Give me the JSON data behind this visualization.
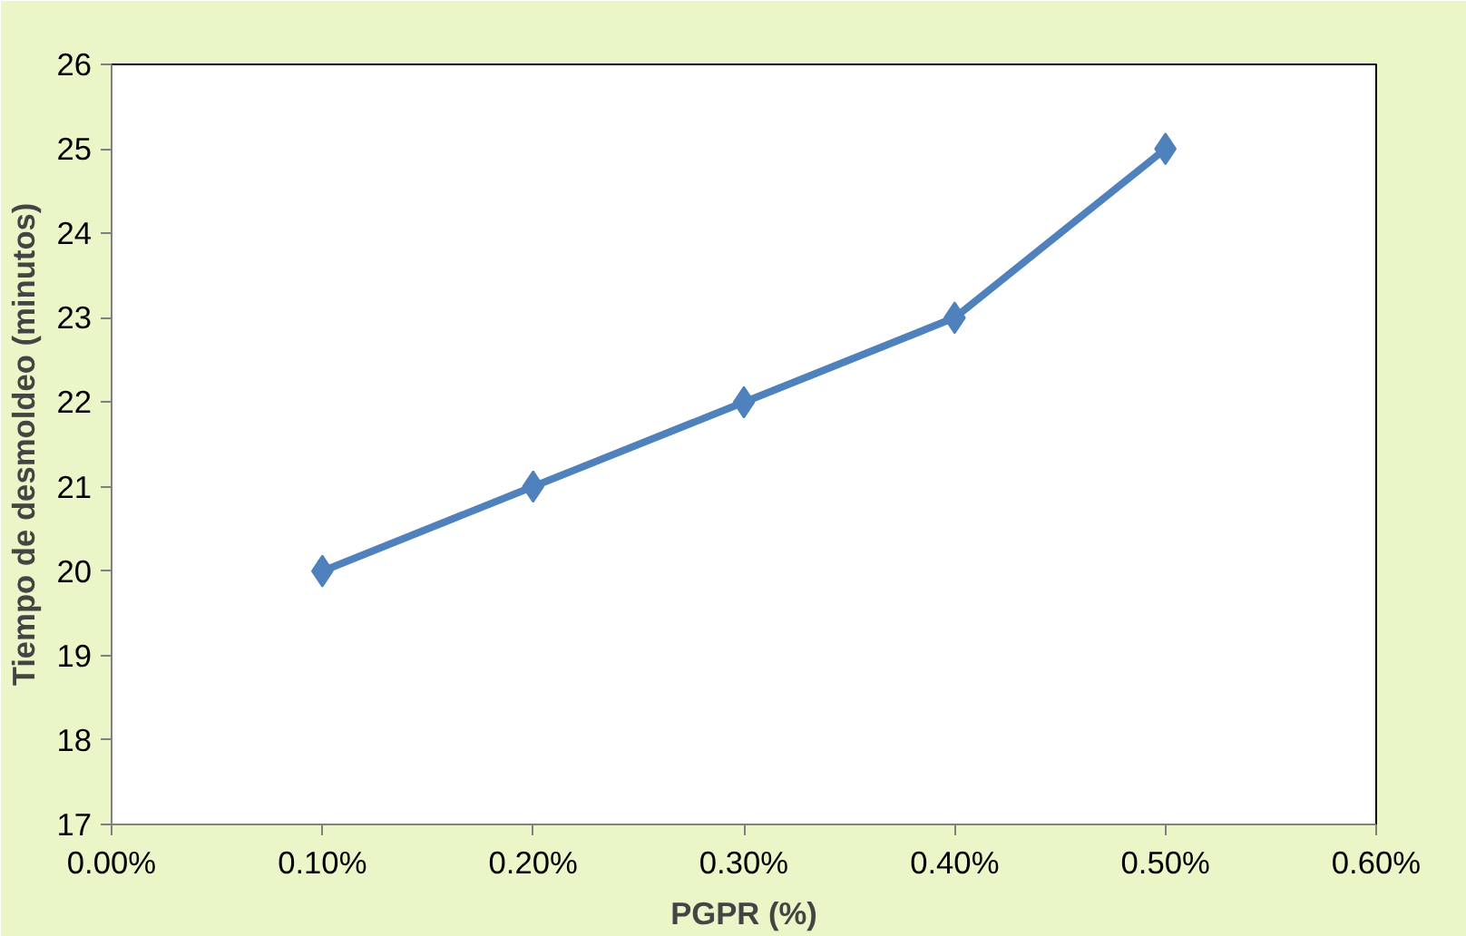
{
  "chart_data": {
    "type": "line",
    "xlabel": "PGPR (%)",
    "ylabel": "Tiempo de desmoldeo (minutos)",
    "x": [
      0.1,
      0.2,
      0.3,
      0.4,
      0.5
    ],
    "series": [
      {
        "color": "#4f81bd",
        "values": [
          20,
          21,
          22,
          23,
          25
        ]
      }
    ],
    "xlim": [
      0,
      0.6
    ],
    "xticks": [
      {
        "value": 0,
        "label": "0.00%"
      },
      {
        "value": 0.1,
        "label": "0.10%"
      },
      {
        "value": 0.2,
        "label": "0.20%"
      },
      {
        "value": 0.3,
        "label": "0.30%"
      },
      {
        "value": 0.4,
        "label": "0.40%"
      },
      {
        "value": 0.5,
        "label": "0.50%"
      },
      {
        "value": 0.6,
        "label": "0.60%"
      }
    ],
    "ylim": [
      17,
      26
    ],
    "yticks": [
      17,
      18,
      19,
      20,
      21,
      22,
      23,
      24,
      25,
      26
    ],
    "grid": false,
    "marker": "diamond",
    "line_style": "solid"
  }
}
